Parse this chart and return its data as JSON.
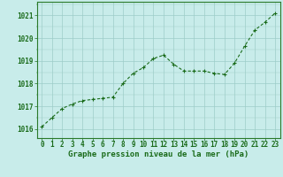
{
  "x": [
    0,
    1,
    2,
    3,
    4,
    5,
    6,
    7,
    8,
    9,
    10,
    11,
    12,
    13,
    14,
    15,
    16,
    17,
    18,
    19,
    20,
    21,
    22,
    23
  ],
  "y": [
    1016.1,
    1016.5,
    1016.9,
    1017.1,
    1017.25,
    1017.3,
    1017.35,
    1017.4,
    1018.0,
    1018.45,
    1018.7,
    1019.1,
    1019.25,
    1018.85,
    1018.55,
    1018.55,
    1018.55,
    1018.45,
    1018.4,
    1018.9,
    1019.65,
    1020.35,
    1020.7,
    1021.1
  ],
  "line_color": "#1a6b1a",
  "marker_color": "#1a6b1a",
  "bg_color": "#c8ecea",
  "grid_color": "#9dcdc8",
  "border_color": "#2a7a2a",
  "xlabel": "Graphe pression niveau de la mer (hPa)",
  "xlabel_color": "#1a6b1a",
  "tick_color": "#1a6b1a",
  "ylabel_ticks": [
    1016,
    1017,
    1018,
    1019,
    1020,
    1021
  ],
  "xlim": [
    -0.5,
    23.5
  ],
  "ylim": [
    1015.6,
    1021.6
  ],
  "xlabel_fontsize": 6.5,
  "tick_fontsize": 5.5
}
